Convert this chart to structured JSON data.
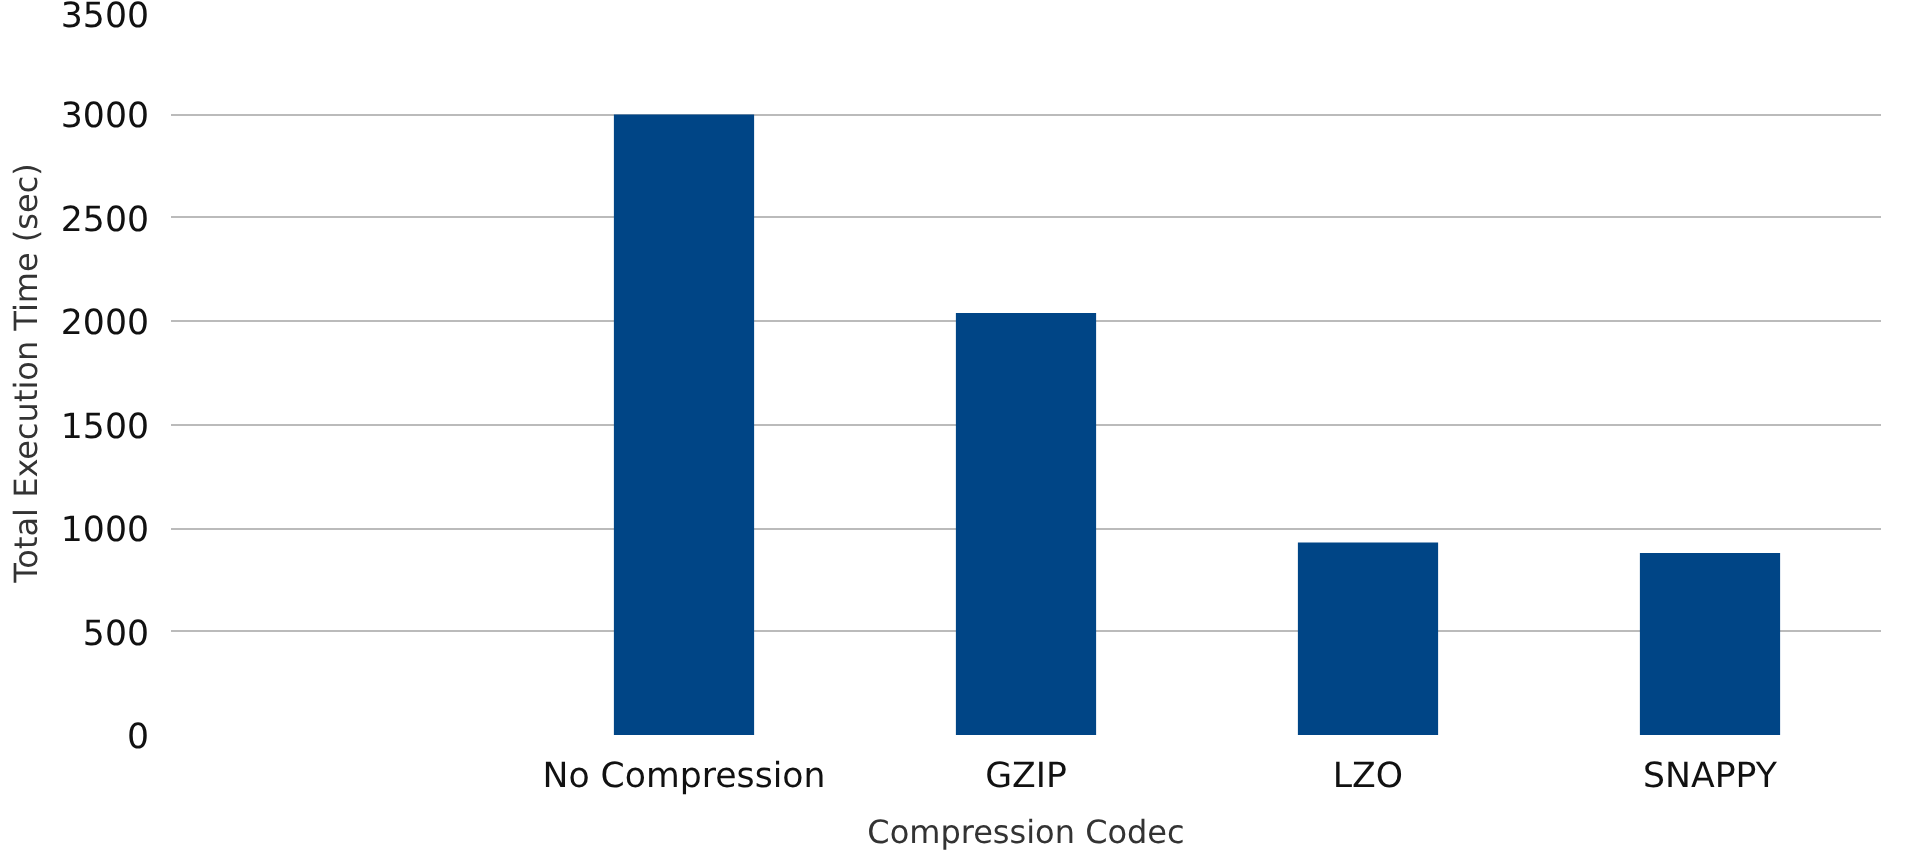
{
  "chart_data": {
    "type": "bar",
    "xlabel": "Compression Codec",
    "ylabel": "Total Execution Time (sec)",
    "categories": [
      null,
      "No Compression",
      "GZIP",
      "LZO",
      "SNAPPY"
    ],
    "values": [
      null,
      3000,
      2040,
      930,
      880
    ],
    "color": "#004586",
    "ylim": [
      0,
      3500
    ],
    "yticks": [
      0,
      500,
      1000,
      1500,
      2000,
      2500,
      3000,
      3500
    ],
    "grid": "y"
  }
}
